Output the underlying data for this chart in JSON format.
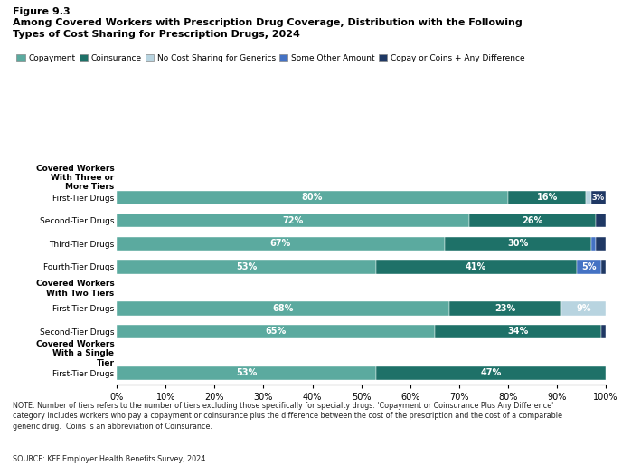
{
  "title_line1": "Figure 9.3",
  "title_line2": "Among Covered Workers with Prescription Drug Coverage, Distribution with the Following",
  "title_line3": "Types of Cost Sharing for Prescription Drugs, 2024",
  "legend_labels": [
    "Copayment",
    "Coinsurance",
    "No Cost Sharing for Generics",
    "Some Other Amount",
    "Copay or Coins + Any Difference"
  ],
  "legend_colors": [
    "#5baa9f",
    "#1e7168",
    "#b8d4e0",
    "#4472c4",
    "#1f3864"
  ],
  "categories": [
    "Covered Workers\nWith Three or\nMore Tiers",
    "First-Tier Drugs",
    "Second-Tier Drugs",
    "Third-Tier Drugs",
    "Fourth-Tier Drugs",
    "Covered Workers\nWith Two Tiers",
    "First-Tier Drugs",
    "Second-Tier Drugs",
    "Covered Workers\nWith a Single\nTier",
    "First-Tier Drugs"
  ],
  "is_header": [
    true,
    false,
    false,
    false,
    false,
    true,
    false,
    false,
    true,
    false
  ],
  "bars": [
    null,
    [
      80,
      16,
      1,
      0,
      3
    ],
    [
      72,
      26,
      0,
      0,
      2
    ],
    [
      67,
      30,
      0,
      1,
      2
    ],
    [
      53,
      41,
      0,
      5,
      1
    ],
    null,
    [
      68,
      23,
      9,
      0,
      0
    ],
    [
      65,
      34,
      0,
      0,
      1
    ],
    null,
    [
      53,
      47,
      0,
      0,
      0
    ]
  ],
  "bar_labels": [
    null,
    [
      "80%",
      "16%",
      "",
      "",
      "3%"
    ],
    [
      "72%",
      "26%",
      "",
      "",
      ""
    ],
    [
      "67%",
      "30%",
      "",
      "",
      ""
    ],
    [
      "53%",
      "41%",
      "",
      "5%",
      ""
    ],
    null,
    [
      "68%",
      "23%",
      "9%",
      "",
      ""
    ],
    [
      "65%",
      "34%",
      "",
      "",
      ""
    ],
    null,
    [
      "53%",
      "47%",
      "",
      "",
      ""
    ]
  ],
  "colors": [
    "#5baa9f",
    "#1e7168",
    "#b8d4e0",
    "#4472c4",
    "#1f3864"
  ],
  "xlim": [
    0,
    100
  ],
  "xticks": [
    0,
    10,
    20,
    30,
    40,
    50,
    60,
    70,
    80,
    90,
    100
  ],
  "xticklabels": [
    "0%",
    "10%",
    "20%",
    "30%",
    "40%",
    "50%",
    "60%",
    "70%",
    "80%",
    "90%",
    "100%"
  ],
  "note": "NOTE: Number of tiers refers to the number of tiers excluding those specifically for specialty drugs. 'Copayment or Coinsurance Plus Any Difference'\ncategory includes workers who pay a copayment or coinsurance plus the difference between the cost of the prescription and the cost of a comparable\ngeneric drug.  Coins is an abbreviation of Coinsurance.",
  "source": "SOURCE: KFF Employer Health Benefits Survey, 2024",
  "background_color": "#ffffff",
  "bar_height": 0.6
}
